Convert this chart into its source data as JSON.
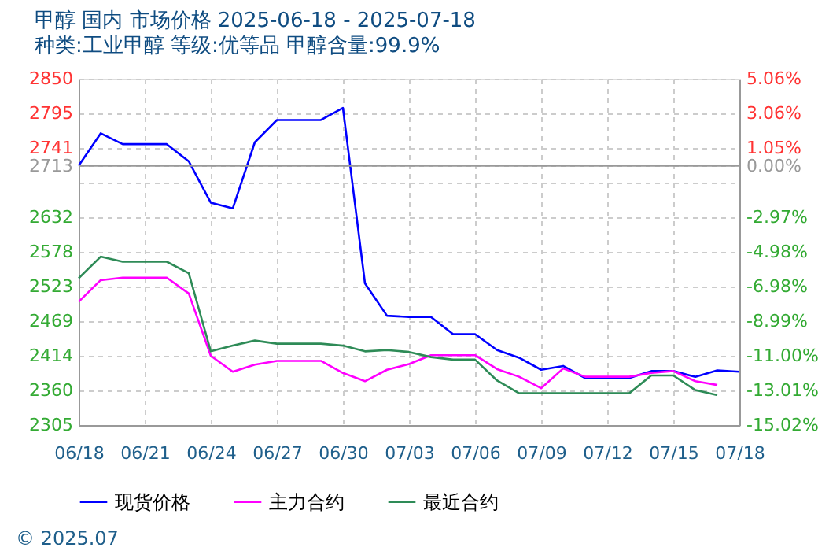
{
  "chart_data": {
    "type": "line",
    "title": "甲醇 国内 市场价格 2025-06-18 - 2025-07-18",
    "subtitle": "种类:工业甲醇 等级:优等品 甲醇含量:99.9%",
    "x": [
      "2025-06-18",
      "2025-06-19",
      "2025-06-20",
      "2025-06-21",
      "2025-06-22",
      "2025-06-23",
      "2025-06-24",
      "2025-06-25",
      "2025-06-26",
      "2025-06-27",
      "2025-06-28",
      "2025-06-29",
      "2025-06-30",
      "2025-07-01",
      "2025-07-02",
      "2025-07-03",
      "2025-07-04",
      "2025-07-05",
      "2025-07-06",
      "2025-07-07",
      "2025-07-08",
      "2025-07-09",
      "2025-07-10",
      "2025-07-11",
      "2025-07-12",
      "2025-07-13",
      "2025-07-14",
      "2025-07-15",
      "2025-07-16",
      "2025-07-17",
      "2025-07-18"
    ],
    "series": [
      {
        "name": "现货价格",
        "color": "#0000ff",
        "values": [
          2713,
          2764,
          2747,
          2747,
          2747,
          2720,
          2655,
          2646,
          2750,
          2785,
          2785,
          2785,
          2804,
          2528,
          2477,
          2475,
          2475,
          2448,
          2448,
          2423,
          2411,
          2392,
          2398,
          2379,
          2379,
          2379,
          2390,
          2390,
          2381,
          2391,
          2389
        ]
      },
      {
        "name": "主力合约",
        "color": "#ff00ff",
        "values": [
          2499,
          2533,
          2537,
          2537,
          2537,
          2512,
          2414,
          2389,
          2400,
          2406,
          2406,
          2406,
          2387,
          2374,
          2392,
          2401,
          2415,
          2415,
          2415,
          2393,
          2381,
          2363,
          2394,
          2381,
          2381,
          2381,
          2387,
          2390,
          2374,
          2368,
          null
        ]
      },
      {
        "name": "最近合约",
        "color": "#2e8b57",
        "values": [
          2536,
          2570,
          2562,
          2562,
          2562,
          2544,
          2421,
          2430,
          2438,
          2433,
          2433,
          2433,
          2430,
          2421,
          2423,
          2420,
          2412,
          2408,
          2408,
          2375,
          2355,
          2355,
          2355,
          2355,
          2355,
          2355,
          2383,
          2383,
          2360,
          2352,
          null
        ]
      }
    ],
    "xlim": [
      "2025-06-18",
      "2025-07-18"
    ],
    "xticks": [
      {
        "value": "2025-06-18",
        "label": "06/18"
      },
      {
        "value": "2025-06-21",
        "label": "06/21"
      },
      {
        "value": "2025-06-24",
        "label": "06/24"
      },
      {
        "value": "2025-06-27",
        "label": "06/27"
      },
      {
        "value": "2025-06-30",
        "label": "06/30"
      },
      {
        "value": "2025-07-03",
        "label": "07/03"
      },
      {
        "value": "2025-07-06",
        "label": "07/06"
      },
      {
        "value": "2025-07-09",
        "label": "07/09"
      },
      {
        "value": "2025-07-12",
        "label": "07/12"
      },
      {
        "value": "2025-07-15",
        "label": "07/15"
      },
      {
        "value": "2025-07-18",
        "label": "07/18"
      }
    ],
    "ylim": [
      2305,
      2850
    ],
    "yticks": [
      2850,
      2795,
      2741,
      2713,
      {
        "value": 2687,
        "label": null
      },
      2632,
      2578,
      2523,
      2469,
      2414,
      2360,
      2305
    ],
    "y2lim": [
      -15.02,
      5.06
    ],
    "y2ticks": [
      {
        "value": 5.06,
        "label": "5.06%"
      },
      {
        "value": 3.06,
        "label": "3.06%"
      },
      {
        "value": 1.05,
        "label": "1.05%"
      },
      {
        "value": 0,
        "label": "0.00%"
      },
      {
        "value": -2.97,
        "label": "-2.97%"
      },
      {
        "value": -4.98,
        "label": "-4.98%"
      },
      {
        "value": -6.98,
        "label": "-6.98%"
      },
      {
        "value": -8.99,
        "label": "-8.99%"
      },
      {
        "value": -11.0,
        "label": "-11.00%"
      },
      {
        "value": -13.01,
        "label": "-13.01%"
      },
      {
        "value": -15.02,
        "label": "-15.02%"
      }
    ],
    "ref_lines": [
      {
        "axis": "y",
        "value": 2713,
        "color": "#999999"
      }
    ],
    "annotations": [
      "© 2025.07"
    ],
    "grid": true,
    "legend": "bottom",
    "marker": "none",
    "line_style": "solid"
  }
}
